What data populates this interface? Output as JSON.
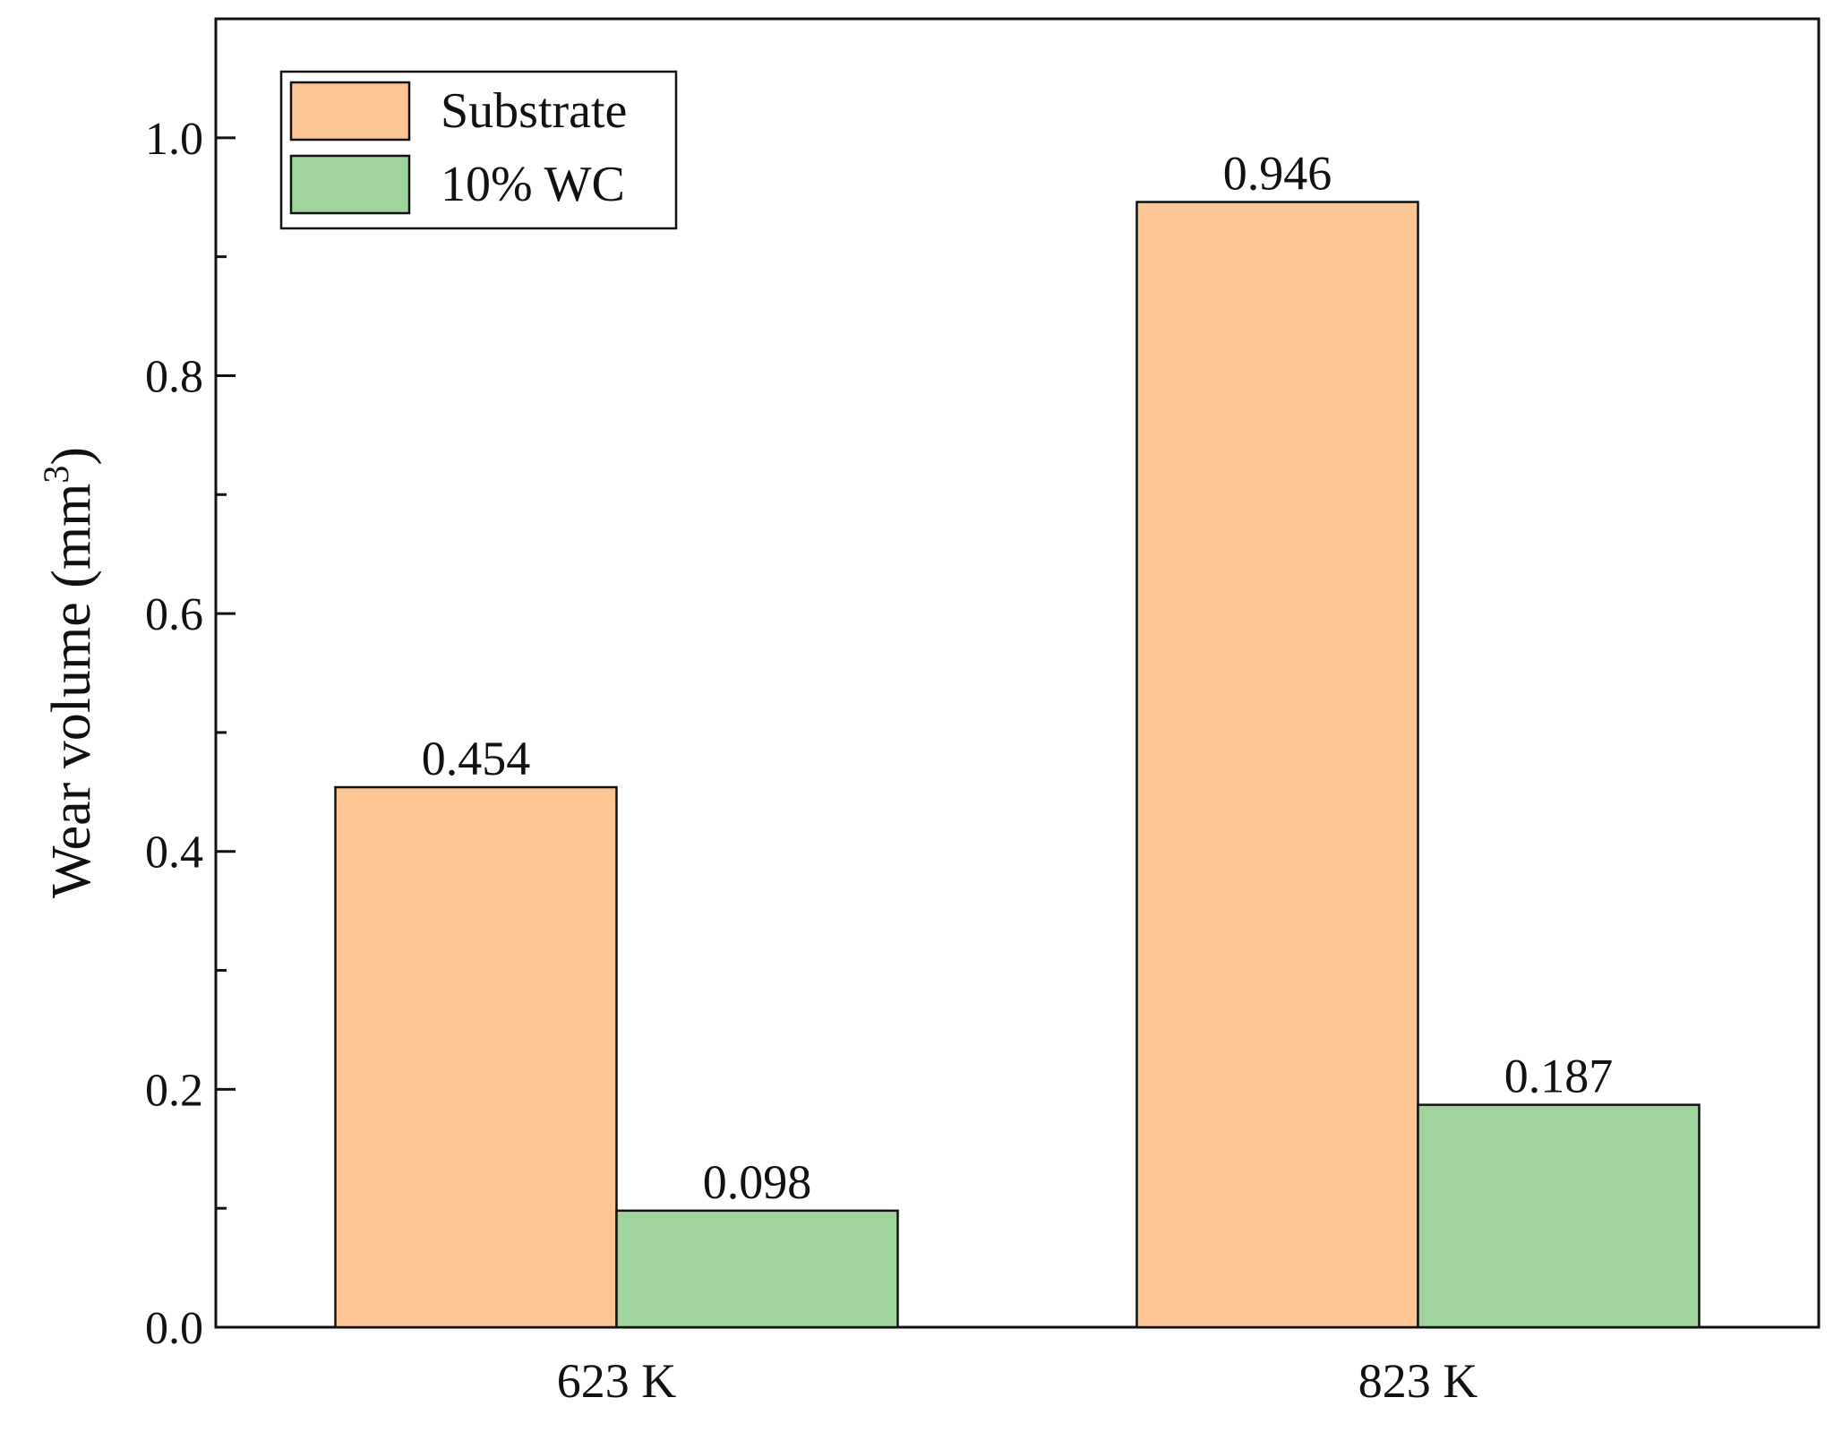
{
  "chart_data": {
    "type": "bar",
    "title": "",
    "xlabel": "",
    "ylabel": "Wear volume (mm",
    "ylabel_superscript": "3",
    "ylabel_close": ")",
    "categories": [
      "623 K",
      "823 K"
    ],
    "series": [
      {
        "name": "Substrate",
        "values": [
          0.454,
          0.946
        ],
        "value_labels": [
          "0.454",
          "0.946"
        ],
        "color": "#FBC594"
      },
      {
        "name": "10% WC",
        "values": [
          0.098,
          0.187
        ],
        "value_labels": [
          "0.098",
          "0.187"
        ],
        "color": "#9FD59C"
      }
    ],
    "ylim": [
      0,
      1.1
    ],
    "yticks": [
      0.0,
      0.2,
      0.4,
      0.6,
      0.8,
      1.0
    ],
    "ytick_labels": [
      "0.0",
      "0.2",
      "0.4",
      "0.6",
      "0.8",
      "1.0"
    ],
    "grid": false,
    "legend_position": "top-left"
  }
}
